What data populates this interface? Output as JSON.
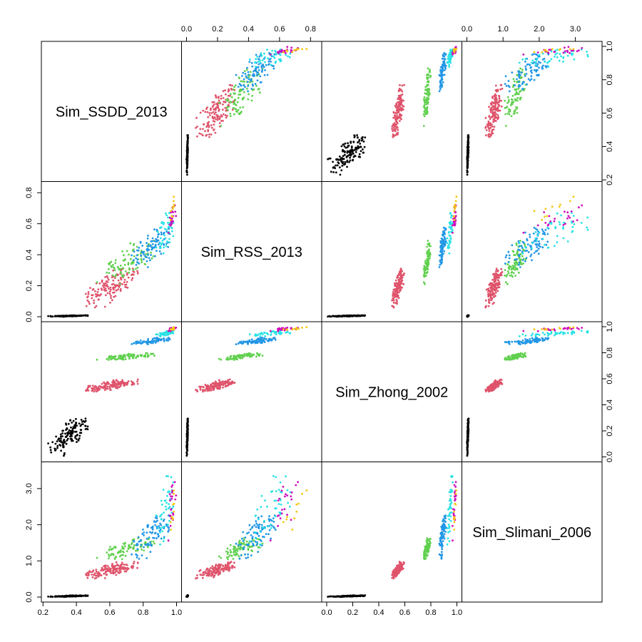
{
  "chart_data": {
    "type": "scatter",
    "subtype": "scatterplot-matrix",
    "variables": [
      {
        "name": "Sim_SSDD_2013",
        "range": [
          0.22,
          1.0
        ],
        "ticks": [
          0.2,
          0.4,
          0.6,
          0.8,
          1.0
        ],
        "tick_labels": [
          "0.2",
          "0.4",
          "0.6",
          "0.8",
          "1.0"
        ]
      },
      {
        "name": "Sim_RSS_2013",
        "range": [
          0.0,
          0.84
        ],
        "ticks": [
          0.0,
          0.2,
          0.4,
          0.6,
          0.8
        ],
        "tick_labels": [
          "0.0",
          "0.2",
          "0.4",
          "0.6",
          "0.8"
        ]
      },
      {
        "name": "Sim_Zhong_2002",
        "range": [
          0.0,
          1.0
        ],
        "ticks": [
          0.0,
          0.2,
          0.4,
          0.6,
          0.8,
          1.0
        ],
        "tick_labels": [
          "0.0",
          "0.2",
          "0.4",
          "0.6",
          "0.8",
          "1.0"
        ]
      },
      {
        "name": "Sim_Slimani_2006",
        "range": [
          0.0,
          3.6
        ],
        "ticks": [
          0.0,
          1.0,
          2.0,
          3.0
        ],
        "tick_labels": [
          "0.0",
          "1.0",
          "2.0",
          "3.0"
        ]
      }
    ],
    "groups": [
      {
        "color": "#000000",
        "ranges": [
          [
            0.22,
            0.48
          ],
          [
            0.0,
            0.01
          ],
          [
            0.0,
            0.32
          ],
          [
            0.0,
            0.05
          ]
        ]
      },
      {
        "color": "#DF536B",
        "ranges": [
          [
            0.44,
            0.78
          ],
          [
            0.05,
            0.33
          ],
          [
            0.5,
            0.6
          ],
          [
            0.5,
            1.0
          ]
        ]
      },
      {
        "color": "#61D04F",
        "ranges": [
          [
            0.52,
            0.9
          ],
          [
            0.2,
            0.5
          ],
          [
            0.74,
            0.8
          ],
          [
            1.0,
            1.7
          ]
        ]
      },
      {
        "color": "#2297E6",
        "ranges": [
          [
            0.72,
            0.98
          ],
          [
            0.3,
            0.6
          ],
          [
            0.86,
            0.92
          ],
          [
            1.0,
            2.4
          ]
        ]
      },
      {
        "color": "#28E2E5",
        "ranges": [
          [
            0.86,
            1.0
          ],
          [
            0.36,
            0.7
          ],
          [
            0.92,
            0.97
          ],
          [
            1.2,
            3.5
          ]
        ]
      },
      {
        "color": "#CD0BBC",
        "ranges": [
          [
            0.94,
            1.0
          ],
          [
            0.5,
            0.74
          ],
          [
            0.96,
            1.0
          ],
          [
            1.4,
            3.5
          ]
        ]
      },
      {
        "color": "#F5C710",
        "ranges": [
          [
            0.96,
            1.0
          ],
          [
            0.6,
            0.8
          ],
          [
            0.97,
            1.0
          ],
          [
            1.8,
            3.0
          ]
        ]
      }
    ],
    "grid": false,
    "legend": "none"
  }
}
